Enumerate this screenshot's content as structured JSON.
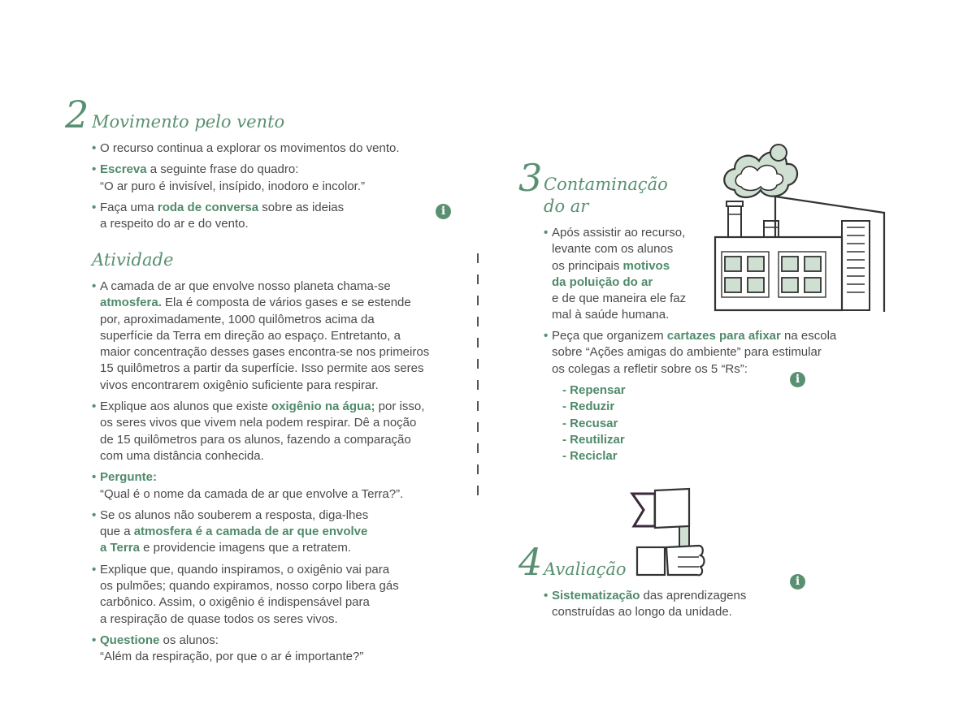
{
  "s2": {
    "number": "2",
    "title": "Movimento pelo vento",
    "b1": "O recurso continua a explorar os movimentos do vento.",
    "b2_bold": "Escreva",
    "b2_text": " a seguinte frase do quadro:",
    "b2_quote": "“O ar puro é invisível, insípido, inodoro e incolor.”",
    "b3_pre": "Faça uma ",
    "b3_bold": "roda de conversa",
    "b3_post": " sobre as ideias",
    "b3_line2": "a respeito do ar e do vento."
  },
  "activity": {
    "title": "Atividade",
    "p1_l1": "A camada de ar que envolve nosso planeta chama-se",
    "p1_bold": "atmosfera.",
    "p1_l2": " Ela é composta de vários gases e se estende",
    "p1_l3": "por, aproximadamente, 1000 quilômetros acima da",
    "p1_l4": "superfície da Terra em direção ao espaço. Entretanto, a",
    "p1_l5": "maior concentração desses gases encontra-se nos primeiros",
    "p1_l6": "15 quilômetros a partir da superfície. Isso permite aos seres",
    "p1_l7": "vivos encontrarem oxigênio suficiente para respirar.",
    "p2_pre": "Explique aos alunos que existe ",
    "p2_bold": "oxigênio na água;",
    "p2_post": " por isso,",
    "p2_l2": "os seres vivos que vivem nela podem respirar. Dê a noção",
    "p2_l3": "de 15 quilômetros para os alunos, fazendo a comparação",
    "p2_l4": "com uma distância conhecida.",
    "p3_bold": "Pergunte:",
    "p3_quote": "“Qual é o nome da camada de ar que envolve a Terra?”.",
    "p4_l1": "Se os alunos não souberem a resposta, diga-lhes",
    "p4_pre": "que a ",
    "p4_bold1": "atmosfera é a camada de ar que envolve",
    "p4_bold2": "a Terra",
    "p4_post": " e providencie imagens que a retratem.",
    "p5_l1": "Explique que, quando inspiramos, o oxigênio vai para",
    "p5_l2": "os pulmões; quando expiramos, nosso corpo libera gás",
    "p5_l3": "carbônico. Assim, o oxigênio é indispensável para",
    "p5_l4": "a respiração de quase todos os seres vivos.",
    "p6_bold": "Questione",
    "p6_post": " os alunos:",
    "p6_quote": "“Além da respiração, por que o ar é importante?”"
  },
  "s3": {
    "number": "3",
    "title_l1": "Contaminação",
    "title_l2": "do ar",
    "b1_l1": "Após assistir ao recurso,",
    "b1_l2": "levante com os alunos",
    "b1_l3_pre": "os principais ",
    "b1_l3_bold": "motivos",
    "b1_l4_bold": "da poluição do ar",
    "b1_l5": "e de que maneira ele faz",
    "b1_l6": "mal à saúde humana.",
    "b2_pre": "Peça que organizem ",
    "b2_bold": "cartazes para afixar",
    "b2_post": " na escola",
    "b2_l2": "sobre “Ações amigas do ambiente” para estimular",
    "b2_l3": "os colegas a refletir sobre os 5 “Rs”:",
    "rs": [
      "- Repensar",
      "- Reduzir",
      "- Recusar",
      "- Reutilizar",
      "- Reciclar"
    ]
  },
  "s4": {
    "number": "4",
    "title": "Avaliação",
    "b1_bold": "Sistematização",
    "b1_post": " das aprendizagens",
    "b1_l2": "construídas ao longo da unidade."
  },
  "info_icon": "i",
  "colors": {
    "accent": "#5a9072",
    "text": "#4a4a4a",
    "illustration_fill": "#cfe0d3"
  }
}
